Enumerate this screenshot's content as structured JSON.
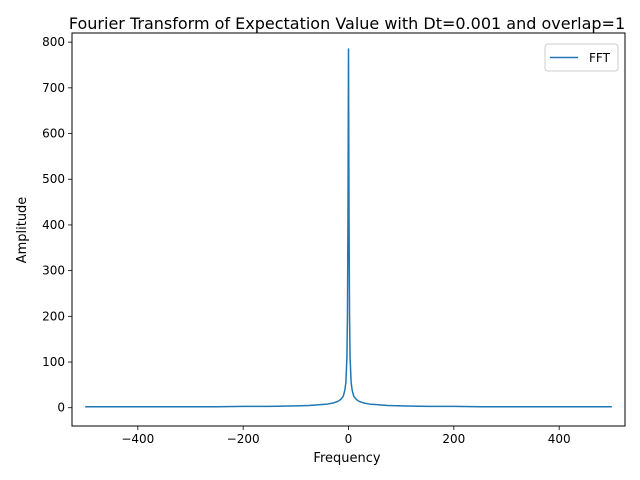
{
  "chart_data": {
    "type": "line",
    "title": "Fourier Transform of Expectation Value with Dt=0.001 and overlap=1",
    "xlabel": "Frequency",
    "ylabel": "Amplitude",
    "xlim": [
      -525,
      525
    ],
    "ylim": [
      -40,
      820
    ],
    "xticks": [
      -400,
      -200,
      0,
      200,
      400
    ],
    "xtick_labels": [
      "−400",
      "−200",
      "0",
      "200",
      "400"
    ],
    "yticks": [
      0,
      100,
      200,
      300,
      400,
      500,
      600,
      700,
      800
    ],
    "ytick_labels": [
      "0",
      "100",
      "200",
      "300",
      "400",
      "500",
      "600",
      "700",
      "800"
    ],
    "grid": false,
    "legend": {
      "position": "top-right",
      "entries": [
        "FFT"
      ]
    },
    "series": [
      {
        "name": "FFT",
        "color": "#1f77b4",
        "x": [
          -500,
          -450,
          -400,
          -350,
          -300,
          -250,
          -200,
          -150,
          -100,
          -75,
          -50,
          -40,
          -30,
          -20,
          -15,
          -10,
          -7,
          -5,
          -3,
          -2,
          -1,
          0,
          1,
          2,
          3,
          5,
          7,
          10,
          15,
          20,
          30,
          40,
          50,
          75,
          100,
          150,
          200,
          250,
          300,
          350,
          400,
          450,
          500
        ],
        "y": [
          2,
          2,
          2,
          2,
          2,
          2,
          3,
          3,
          4,
          5,
          7,
          8,
          10,
          14,
          18,
          25,
          38,
          55,
          110,
          200,
          420,
          785,
          420,
          200,
          110,
          55,
          38,
          25,
          18,
          14,
          10,
          8,
          7,
          5,
          4,
          3,
          3,
          2,
          2,
          2,
          2,
          2,
          2
        ]
      }
    ]
  }
}
